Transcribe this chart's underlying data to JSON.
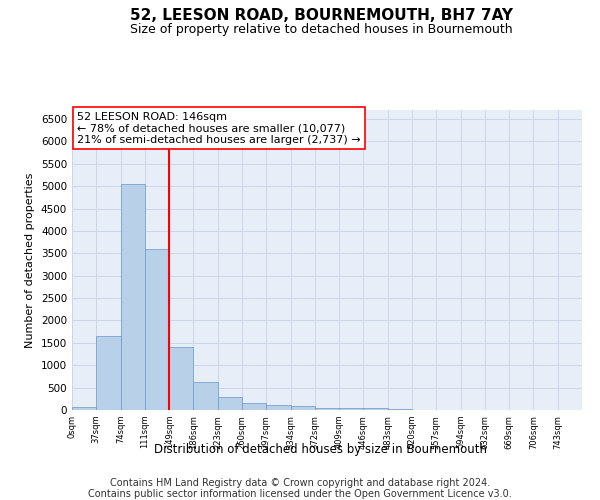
{
  "title": "52, LEESON ROAD, BOURNEMOUTH, BH7 7AY",
  "subtitle": "Size of property relative to detached houses in Bournemouth",
  "xlabel": "Distribution of detached houses by size in Bournemouth",
  "ylabel": "Number of detached properties",
  "footer1": "Contains HM Land Registry data © Crown copyright and database right 2024.",
  "footer2": "Contains public sector information licensed under the Open Government Licence v3.0.",
  "annotation_line1": "52 LEESON ROAD: 146sqm",
  "annotation_line2": "← 78% of detached houses are smaller (10,077)",
  "annotation_line3": "21% of semi-detached houses are larger (2,737) →",
  "bar_values": [
    75,
    1650,
    5050,
    3600,
    1400,
    620,
    300,
    150,
    110,
    80,
    50,
    50,
    50,
    20,
    10,
    5,
    5,
    5,
    5,
    5,
    0
  ],
  "bar_color": "#b8d0e8",
  "bar_edge_color": "#6699cc",
  "bar_width": 1.0,
  "red_line_x": 4.0,
  "ylim": [
    0,
    6700
  ],
  "yticks": [
    0,
    500,
    1000,
    1500,
    2000,
    2500,
    3000,
    3500,
    4000,
    4500,
    5000,
    5500,
    6000,
    6500
  ],
  "xtick_labels": [
    "0sqm",
    "37sqm",
    "74sqm",
    "111sqm",
    "149sqm",
    "186sqm",
    "223sqm",
    "260sqm",
    "297sqm",
    "334sqm",
    "372sqm",
    "409sqm",
    "446sqm",
    "483sqm",
    "520sqm",
    "557sqm",
    "594sqm",
    "632sqm",
    "669sqm",
    "706sqm",
    "743sqm"
  ],
  "grid_color": "#ccd6e8",
  "background_color": "#e8eef8",
  "title_fontsize": 11,
  "subtitle_fontsize": 9,
  "annotation_fontsize": 8,
  "footer_fontsize": 7
}
